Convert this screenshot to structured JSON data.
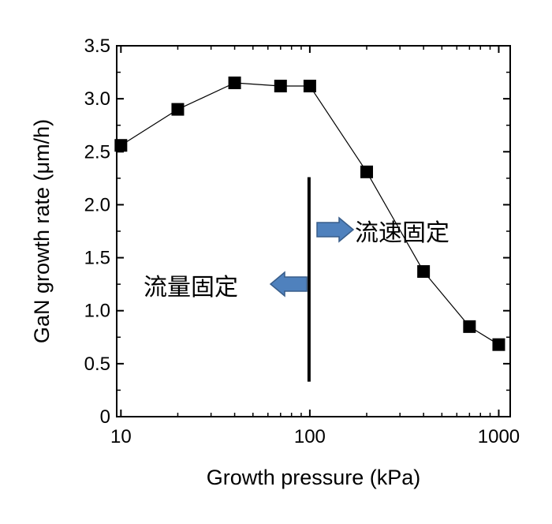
{
  "chart_data": {
    "type": "scatter",
    "x_scale": "log",
    "xlabel": "Growth pressure (kPa)",
    "ylabel": "GaN growth rate (μm/h)",
    "xlim": [
      9.5,
      1150
    ],
    "ylim": [
      0,
      3.5
    ],
    "x_ticks": [
      10,
      100,
      1000
    ],
    "x_tick_labels": [
      "10",
      "100",
      "1000"
    ],
    "y_ticks": [
      0,
      0.5,
      1.0,
      1.5,
      2.0,
      2.5,
      3.0,
      3.5
    ],
    "y_tick_labels": [
      "0",
      "0.5",
      "1.0",
      "1.5",
      "2.0",
      "2.5",
      "3.0",
      "3.5"
    ],
    "grid": false,
    "series": [
      {
        "marker": "square",
        "line": "connected",
        "color": "#000000",
        "x": [
          10,
          20,
          40,
          70,
          100,
          200,
          400,
          700,
          1000
        ],
        "y": [
          2.56,
          2.9,
          3.15,
          3.12,
          3.12,
          2.31,
          1.37,
          0.85,
          0.68
        ]
      }
    ],
    "boundary_line": {
      "x": 100,
      "y_range": [
        0.33,
        2.26
      ]
    },
    "annotations": [
      {
        "text": "流速固定",
        "arrow": "right",
        "arrow_color": "#4f81bd"
      },
      {
        "text": "流量固定",
        "arrow": "left",
        "arrow_color": "#4f81bd"
      }
    ]
  }
}
